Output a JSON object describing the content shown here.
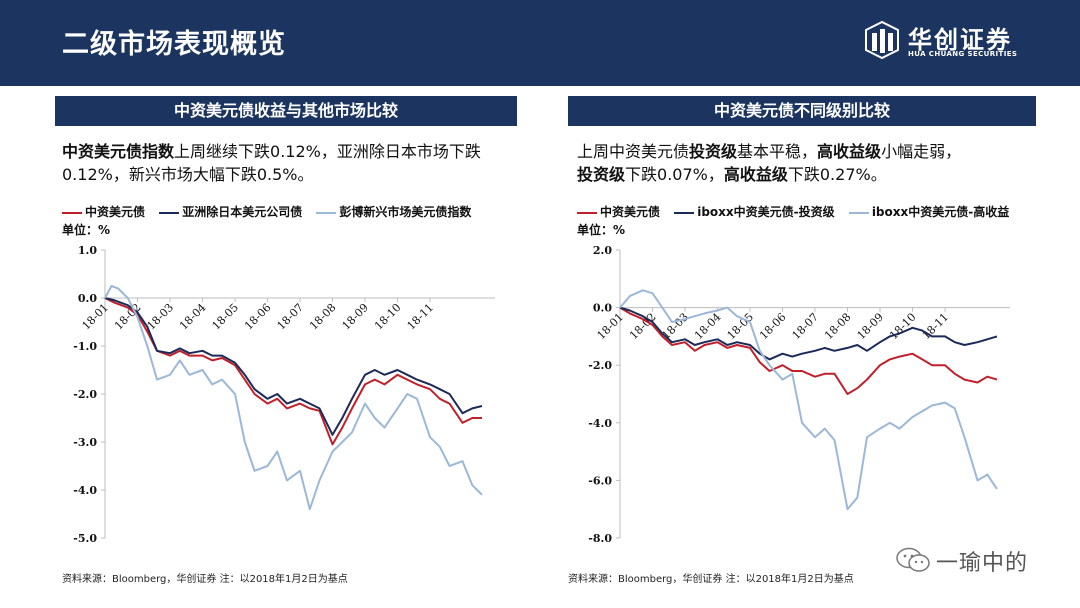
{
  "header": {
    "title": "二级市场表现概览"
  },
  "logo": {
    "name_cn": "华创证券",
    "name_en": "HUA CHUANG SECURITIES",
    "icon": "huachuang-logo-icon"
  },
  "left": {
    "title": "中资美元债收益与其他市场比较",
    "desc_bold": "中资美元债指数",
    "desc_rest": "上周继续下跌0.12%，亚洲除日本市场下跌0.12%，新兴市场大幅下跌0.5%。",
    "unit": "单位：%",
    "source": "资料来源：Bloomberg，华创证券   注：以2018年1月2日为基点"
  },
  "right": {
    "title": "中资美元债不同级别比较",
    "desc_line1_a": "上周中资美元债",
    "desc_line1_b": "投资级",
    "desc_line1_c": "基本平稳，",
    "desc_line1_d": "高收益级",
    "desc_line1_e": "小幅走弱，",
    "desc_line2_a": "投资级",
    "desc_line2_b": "下跌0.07%，",
    "desc_line2_c": "高收益级",
    "desc_line2_d": "下跌0.27%。",
    "unit": "单位：%",
    "source": "资料来源：Bloomberg，华创证券   注：以2018年1月2日为基点"
  },
  "watermark": {
    "text": "一瑜中的",
    "icon": "wechat-icon"
  },
  "chart_data": [
    {
      "type": "line",
      "x_ticks": [
        "18-01",
        "18-02",
        "18-03",
        "18-04",
        "18-05",
        "18-06",
        "18-07",
        "18-08",
        "18-09",
        "18-10",
        "18-11"
      ],
      "ylim": [
        -5.0,
        1.0
      ],
      "y_ticks": [
        1.0,
        0.0,
        -1.0,
        -2.0,
        -3.0,
        -4.0,
        -5.0
      ],
      "y_tick_labels": [
        "1.0",
        "0.0",
        "-1.0",
        "-2.0",
        "-3.0",
        "-4.0",
        "-5.0"
      ],
      "grid": false,
      "legend_position": "top",
      "series": [
        {
          "name": "中资美元债",
          "color": "#c0202a",
          "points": [
            [
              0,
              0.0
            ],
            [
              0.3,
              -0.1
            ],
            [
              0.7,
              -0.2
            ],
            [
              1.0,
              -0.35
            ],
            [
              1.3,
              -0.7
            ],
            [
              1.6,
              -1.1
            ],
            [
              2.0,
              -1.2
            ],
            [
              2.3,
              -1.1
            ],
            [
              2.6,
              -1.2
            ],
            [
              3.0,
              -1.2
            ],
            [
              3.3,
              -1.3
            ],
            [
              3.6,
              -1.25
            ],
            [
              4.0,
              -1.4
            ],
            [
              4.3,
              -1.7
            ],
            [
              4.6,
              -2.0
            ],
            [
              5.0,
              -2.2
            ],
            [
              5.3,
              -2.1
            ],
            [
              5.6,
              -2.3
            ],
            [
              6.0,
              -2.2
            ],
            [
              6.3,
              -2.3
            ],
            [
              6.6,
              -2.35
            ],
            [
              7.0,
              -3.05
            ],
            [
              7.3,
              -2.7
            ],
            [
              7.6,
              -2.3
            ],
            [
              8.0,
              -1.8
            ],
            [
              8.3,
              -1.7
            ],
            [
              8.6,
              -1.8
            ],
            [
              9.0,
              -1.6
            ],
            [
              9.3,
              -1.7
            ],
            [
              9.6,
              -1.8
            ],
            [
              10.0,
              -1.9
            ],
            [
              10.3,
              -2.1
            ],
            [
              10.6,
              -2.2
            ],
            [
              11.0,
              -2.6
            ],
            [
              11.3,
              -2.5
            ],
            [
              11.6,
              -2.5
            ]
          ]
        },
        {
          "name": "亚洲除日本美元公司债",
          "color": "#1c2a5a",
          "points": [
            [
              0,
              0.0
            ],
            [
              0.3,
              -0.05
            ],
            [
              0.7,
              -0.15
            ],
            [
              1.0,
              -0.3
            ],
            [
              1.3,
              -0.6
            ],
            [
              1.6,
              -1.1
            ],
            [
              2.0,
              -1.15
            ],
            [
              2.3,
              -1.05
            ],
            [
              2.6,
              -1.15
            ],
            [
              3.0,
              -1.1
            ],
            [
              3.3,
              -1.2
            ],
            [
              3.6,
              -1.2
            ],
            [
              4.0,
              -1.35
            ],
            [
              4.3,
              -1.6
            ],
            [
              4.6,
              -1.9
            ],
            [
              5.0,
              -2.1
            ],
            [
              5.3,
              -2.0
            ],
            [
              5.6,
              -2.2
            ],
            [
              6.0,
              -2.1
            ],
            [
              6.3,
              -2.2
            ],
            [
              6.6,
              -2.3
            ],
            [
              7.0,
              -2.85
            ],
            [
              7.3,
              -2.5
            ],
            [
              7.6,
              -2.1
            ],
            [
              8.0,
              -1.6
            ],
            [
              8.3,
              -1.5
            ],
            [
              8.6,
              -1.6
            ],
            [
              9.0,
              -1.5
            ],
            [
              9.3,
              -1.6
            ],
            [
              9.6,
              -1.7
            ],
            [
              10.0,
              -1.8
            ],
            [
              10.3,
              -1.9
            ],
            [
              10.6,
              -2.0
            ],
            [
              11.0,
              -2.4
            ],
            [
              11.3,
              -2.3
            ],
            [
              11.6,
              -2.25
            ]
          ]
        },
        {
          "name": "彭博新兴市场美元债指数",
          "color": "#9bb8d8",
          "points": [
            [
              0,
              0.0
            ],
            [
              0.2,
              0.25
            ],
            [
              0.4,
              0.2
            ],
            [
              0.7,
              0.0
            ],
            [
              1.0,
              -0.4
            ],
            [
              1.3,
              -1.0
            ],
            [
              1.6,
              -1.7
            ],
            [
              2.0,
              -1.6
            ],
            [
              2.3,
              -1.3
            ],
            [
              2.6,
              -1.6
            ],
            [
              3.0,
              -1.5
            ],
            [
              3.3,
              -1.8
            ],
            [
              3.6,
              -1.7
            ],
            [
              4.0,
              -2.0
            ],
            [
              4.3,
              -3.0
            ],
            [
              4.6,
              -3.6
            ],
            [
              5.0,
              -3.5
            ],
            [
              5.3,
              -3.2
            ],
            [
              5.6,
              -3.8
            ],
            [
              6.0,
              -3.6
            ],
            [
              6.3,
              -4.4
            ],
            [
              6.6,
              -3.8
            ],
            [
              7.0,
              -3.2
            ],
            [
              7.3,
              -3.0
            ],
            [
              7.6,
              -2.8
            ],
            [
              8.0,
              -2.2
            ],
            [
              8.3,
              -2.5
            ],
            [
              8.6,
              -2.7
            ],
            [
              9.0,
              -2.3
            ],
            [
              9.3,
              -2.0
            ],
            [
              9.6,
              -2.1
            ],
            [
              10.0,
              -2.9
            ],
            [
              10.3,
              -3.1
            ],
            [
              10.6,
              -3.5
            ],
            [
              11.0,
              -3.4
            ],
            [
              11.3,
              -3.9
            ],
            [
              11.6,
              -4.1
            ]
          ]
        }
      ]
    },
    {
      "type": "line",
      "x_ticks": [
        "18-01",
        "18-02",
        "18-03",
        "18-04",
        "18-05",
        "18-06",
        "18-07",
        "18-08",
        "18-09",
        "18-10",
        "18-11"
      ],
      "ylim": [
        -8.0,
        2.0
      ],
      "y_ticks": [
        2.0,
        0.0,
        -2.0,
        -4.0,
        -6.0,
        -8.0
      ],
      "y_tick_labels": [
        "2.0",
        "0.0",
        "-2.0",
        "-4.0",
        "-6.0",
        "-8.0"
      ],
      "grid": false,
      "legend_position": "top",
      "series": [
        {
          "name": "中资美元债",
          "color": "#c0202a",
          "points": [
            [
              0,
              0.0
            ],
            [
              0.3,
              -0.2
            ],
            [
              0.7,
              -0.4
            ],
            [
              1.0,
              -0.6
            ],
            [
              1.3,
              -1.0
            ],
            [
              1.6,
              -1.3
            ],
            [
              2.0,
              -1.2
            ],
            [
              2.3,
              -1.5
            ],
            [
              2.6,
              -1.3
            ],
            [
              3.0,
              -1.2
            ],
            [
              3.3,
              -1.4
            ],
            [
              3.6,
              -1.3
            ],
            [
              4.0,
              -1.4
            ],
            [
              4.3,
              -1.9
            ],
            [
              4.6,
              -2.2
            ],
            [
              5.0,
              -2.0
            ],
            [
              5.3,
              -2.2
            ],
            [
              5.6,
              -2.2
            ],
            [
              6.0,
              -2.4
            ],
            [
              6.3,
              -2.3
            ],
            [
              6.6,
              -2.3
            ],
            [
              7.0,
              -3.0
            ],
            [
              7.3,
              -2.8
            ],
            [
              7.6,
              -2.5
            ],
            [
              8.0,
              -2.0
            ],
            [
              8.3,
              -1.8
            ],
            [
              8.6,
              -1.7
            ],
            [
              9.0,
              -1.6
            ],
            [
              9.3,
              -1.8
            ],
            [
              9.6,
              -2.0
            ],
            [
              10.0,
              -2.0
            ],
            [
              10.3,
              -2.3
            ],
            [
              10.6,
              -2.5
            ],
            [
              11.0,
              -2.6
            ],
            [
              11.3,
              -2.4
            ],
            [
              11.6,
              -2.5
            ]
          ]
        },
        {
          "name": "iboxx中资美元债-投资级",
          "color": "#1c2a5a",
          "points": [
            [
              0,
              0.0
            ],
            [
              0.3,
              -0.1
            ],
            [
              0.7,
              -0.3
            ],
            [
              1.0,
              -0.5
            ],
            [
              1.3,
              -0.9
            ],
            [
              1.6,
              -1.2
            ],
            [
              2.0,
              -1.1
            ],
            [
              2.3,
              -1.3
            ],
            [
              2.6,
              -1.2
            ],
            [
              3.0,
              -1.1
            ],
            [
              3.3,
              -1.3
            ],
            [
              3.6,
              -1.2
            ],
            [
              4.0,
              -1.3
            ],
            [
              4.3,
              -1.6
            ],
            [
              4.6,
              -1.8
            ],
            [
              5.0,
              -1.6
            ],
            [
              5.3,
              -1.7
            ],
            [
              5.6,
              -1.6
            ],
            [
              6.0,
              -1.5
            ],
            [
              6.3,
              -1.4
            ],
            [
              6.6,
              -1.5
            ],
            [
              7.0,
              -1.4
            ],
            [
              7.3,
              -1.3
            ],
            [
              7.6,
              -1.5
            ],
            [
              8.0,
              -1.2
            ],
            [
              8.3,
              -1.0
            ],
            [
              8.6,
              -0.9
            ],
            [
              9.0,
              -0.7
            ],
            [
              9.3,
              -0.8
            ],
            [
              9.6,
              -1.0
            ],
            [
              10.0,
              -1.0
            ],
            [
              10.3,
              -1.2
            ],
            [
              10.6,
              -1.3
            ],
            [
              11.0,
              -1.2
            ],
            [
              11.3,
              -1.1
            ],
            [
              11.6,
              -1.0
            ]
          ]
        },
        {
          "name": "iboxx中资美元债-高收益",
          "color": "#9bb8d8",
          "points": [
            [
              0,
              0.0
            ],
            [
              0.3,
              0.4
            ],
            [
              0.7,
              0.6
            ],
            [
              1.0,
              0.5
            ],
            [
              1.3,
              0.0
            ],
            [
              1.6,
              -0.5
            ],
            [
              2.0,
              -0.4
            ],
            [
              2.3,
              -0.3
            ],
            [
              2.6,
              -0.2
            ],
            [
              3.0,
              -0.1
            ],
            [
              3.3,
              0.0
            ],
            [
              3.6,
              -0.3
            ],
            [
              4.0,
              -0.5
            ],
            [
              4.3,
              -1.5
            ],
            [
              4.6,
              -2.0
            ],
            [
              5.0,
              -2.5
            ],
            [
              5.3,
              -2.3
            ],
            [
              5.6,
              -4.0
            ],
            [
              6.0,
              -4.5
            ],
            [
              6.3,
              -4.2
            ],
            [
              6.6,
              -4.6
            ],
            [
              7.0,
              -7.0
            ],
            [
              7.3,
              -6.6
            ],
            [
              7.6,
              -4.5
            ],
            [
              8.0,
              -4.2
            ],
            [
              8.3,
              -4.0
            ],
            [
              8.6,
              -4.2
            ],
            [
              9.0,
              -3.8
            ],
            [
              9.3,
              -3.6
            ],
            [
              9.6,
              -3.4
            ],
            [
              10.0,
              -3.3
            ],
            [
              10.3,
              -3.5
            ],
            [
              10.6,
              -4.5
            ],
            [
              11.0,
              -6.0
            ],
            [
              11.3,
              -5.8
            ],
            [
              11.6,
              -6.3
            ]
          ]
        }
      ]
    }
  ]
}
